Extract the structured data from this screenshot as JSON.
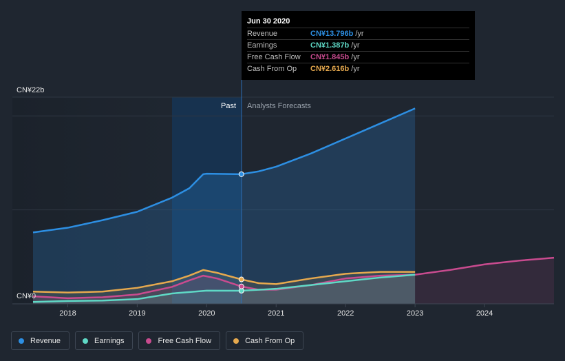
{
  "chart_data": {
    "type": "area",
    "y_axis": {
      "top_label": "CN¥22b",
      "bottom_label": "CN¥0",
      "ylim": [
        0,
        22
      ]
    },
    "x_axis": {
      "ticks": [
        "2018",
        "2019",
        "2020",
        "2021",
        "2022",
        "2023",
        "2024"
      ],
      "xlim": [
        2017.5,
        2025
      ]
    },
    "regions": {
      "past_label": "Past",
      "forecast_label": "Analysts Forecasts",
      "divider_x": 2020.5
    },
    "series": [
      {
        "name": "Revenue",
        "color": "#2d8fe3",
        "points": [
          [
            2017.5,
            7.6
          ],
          [
            2018,
            8.1
          ],
          [
            2018.5,
            8.9
          ],
          [
            2019,
            9.8
          ],
          [
            2019.5,
            11.3
          ],
          [
            2019.75,
            12.3
          ],
          [
            2019.95,
            13.8
          ],
          [
            2020,
            13.85
          ],
          [
            2020.5,
            13.8
          ],
          [
            2020.75,
            14.1
          ],
          [
            2021,
            14.6
          ],
          [
            2021.5,
            16.0
          ],
          [
            2022,
            17.6
          ],
          [
            2022.5,
            19.2
          ],
          [
            2023,
            20.8
          ]
        ]
      },
      {
        "name": "Earnings",
        "color": "#5fd9c6",
        "points": [
          [
            2017.5,
            0.2
          ],
          [
            2018,
            0.3
          ],
          [
            2018.5,
            0.35
          ],
          [
            2019,
            0.5
          ],
          [
            2019.5,
            1.1
          ],
          [
            2020,
            1.4
          ],
          [
            2020.5,
            1.39
          ],
          [
            2021,
            1.6
          ],
          [
            2021.5,
            2.0
          ],
          [
            2022,
            2.4
          ],
          [
            2022.5,
            2.8
          ],
          [
            2023,
            3.1
          ]
        ]
      },
      {
        "name": "Free Cash Flow",
        "color": "#c94b8f",
        "points": [
          [
            2017.5,
            0.8
          ],
          [
            2018,
            0.6
          ],
          [
            2018.5,
            0.7
          ],
          [
            2019,
            1.0
          ],
          [
            2019.5,
            1.8
          ],
          [
            2019.75,
            2.5
          ],
          [
            2019.95,
            3.0
          ],
          [
            2020.15,
            2.7
          ],
          [
            2020.5,
            1.85
          ],
          [
            2020.75,
            1.5
          ],
          [
            2021,
            1.5
          ],
          [
            2021.5,
            2.0
          ],
          [
            2022,
            2.7
          ],
          [
            2022.5,
            3.0
          ],
          [
            2023,
            3.1
          ],
          [
            2023.5,
            3.6
          ],
          [
            2024,
            4.2
          ],
          [
            2024.5,
            4.6
          ],
          [
            2025,
            4.9
          ]
        ]
      },
      {
        "name": "Cash From Op",
        "color": "#e6a94e",
        "points": [
          [
            2017.5,
            1.3
          ],
          [
            2018,
            1.2
          ],
          [
            2018.5,
            1.3
          ],
          [
            2019,
            1.7
          ],
          [
            2019.5,
            2.4
          ],
          [
            2019.75,
            3.0
          ],
          [
            2019.95,
            3.6
          ],
          [
            2020.15,
            3.3
          ],
          [
            2020.5,
            2.6
          ],
          [
            2020.75,
            2.2
          ],
          [
            2021,
            2.1
          ],
          [
            2021.5,
            2.7
          ],
          [
            2022,
            3.2
          ],
          [
            2022.5,
            3.4
          ],
          [
            2023,
            3.4
          ]
        ]
      }
    ],
    "tooltip": {
      "date": "Jun 30 2020",
      "rows": [
        {
          "label": "Revenue",
          "value": "CN¥13.796b",
          "unit": "/yr",
          "color": "#2d8fe3"
        },
        {
          "label": "Earnings",
          "value": "CN¥1.387b",
          "unit": "/yr",
          "color": "#5fd9c6"
        },
        {
          "label": "Free Cash Flow",
          "value": "CN¥1.845b",
          "unit": "/yr",
          "color": "#c94b8f"
        },
        {
          "label": "Cash From Op",
          "value": "CN¥2.616b",
          "unit": "/yr",
          "color": "#e6a94e"
        }
      ]
    },
    "legend": [
      {
        "label": "Revenue",
        "color": "#2d8fe3"
      },
      {
        "label": "Earnings",
        "color": "#5fd9c6"
      },
      {
        "label": "Free Cash Flow",
        "color": "#c94b8f"
      },
      {
        "label": "Cash From Op",
        "color": "#e6a94e"
      }
    ]
  }
}
